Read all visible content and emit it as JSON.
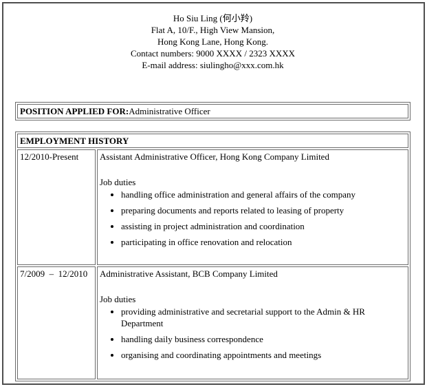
{
  "colors": {
    "background": "#ffffff",
    "text": "#000000",
    "table_border": "#6a6a6a",
    "frame_border": "#4e4e4e"
  },
  "header": {
    "name": "Ho Siu Ling (何小羚)",
    "address_line1": "Flat A, 10/F., High View Mansion,",
    "address_line2": "Hong Kong Lane, Hong Kong.",
    "contact_numbers": "Contact numbers: 9000 XXXX / 2323 XXXX",
    "email": "E-mail address: siulingho@xxx.com.hk"
  },
  "position_applied": {
    "label": "POSITION APPLIED FOR:",
    "value": "Administrative Officer"
  },
  "employment": {
    "title": "EMPLOYMENT HISTORY",
    "jobs": [
      {
        "period": "12/2010-Present",
        "title": "Assistant Administrative Officer, Hong Kong Company Limited",
        "duties_label": "Job duties",
        "duties": [
          "handling office administration and general affairs of the company",
          "preparing documents and reports related to leasing of property",
          "assisting in project administration and coordination",
          "participating in office renovation and relocation"
        ]
      },
      {
        "period": "7/2009  –  12/2010",
        "title": "Administrative Assistant, BCB Company Limited",
        "duties_label": "Job duties",
        "duties": [
          "providing administrative and secretarial support to the Admin & HR Department",
          "handling daily business correspondence",
          "organising and coordinating appointments and meetings"
        ]
      }
    ]
  }
}
